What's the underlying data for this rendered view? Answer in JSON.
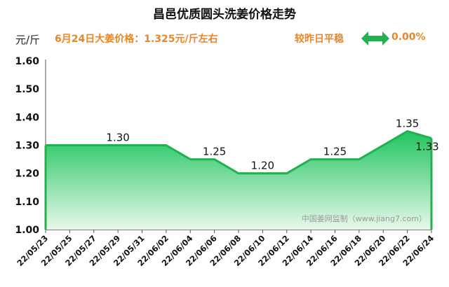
{
  "header": {
    "title": "昌邑优质圆头洗姜价格走势",
    "unit": "元/斤",
    "price_label": "6月24日大姜价格：1.325元/斤左右",
    "change_text": "较昨日平稳",
    "change_pct": "0.00%"
  },
  "watermark": "中国姜网监制（www.jiang7.com）",
  "colors": {
    "line": "#22b050",
    "fill_top": "#1ec45e",
    "fill_bottom": "#e8f8ea",
    "accent_text": "#e8862a",
    "arrow": "#22b050"
  },
  "icons": {
    "change": "double-arrow-icon"
  },
  "chart_data": {
    "type": "area",
    "x": [
      "22/05/23",
      "22/05/25",
      "22/05/27",
      "22/05/29",
      "22/05/31",
      "22/06/02",
      "22/06/04",
      "22/06/06",
      "22/06/08",
      "22/06/10",
      "22/06/12",
      "22/06/14",
      "22/06/16",
      "22/06/18",
      "22/06/20",
      "22/06/22",
      "22/06/24"
    ],
    "y": [
      1.3,
      1.3,
      1.3,
      1.3,
      1.3,
      1.3,
      1.25,
      1.25,
      1.2,
      1.2,
      1.2,
      1.25,
      1.25,
      1.25,
      1.3,
      1.35,
      1.325
    ],
    "ylim": [
      1.0,
      1.6
    ],
    "yticks": [
      "1.00",
      "1.10",
      "1.20",
      "1.30",
      "1.40",
      "1.50",
      "1.60"
    ],
    "annotations": [
      {
        "x": "22/05/29",
        "y": 1.3,
        "text": "1.30"
      },
      {
        "x": "22/06/06",
        "y": 1.25,
        "text": "1.25"
      },
      {
        "x": "22/06/10",
        "y": 1.2,
        "text": "1.20"
      },
      {
        "x": "22/06/16",
        "y": 1.25,
        "text": "1.25"
      },
      {
        "x": "22/06/22",
        "y": 1.35,
        "text": "1.35"
      },
      {
        "x": "22/06/24",
        "y": 1.325,
        "text": "1.33"
      }
    ],
    "grid": false,
    "legend": "none"
  }
}
